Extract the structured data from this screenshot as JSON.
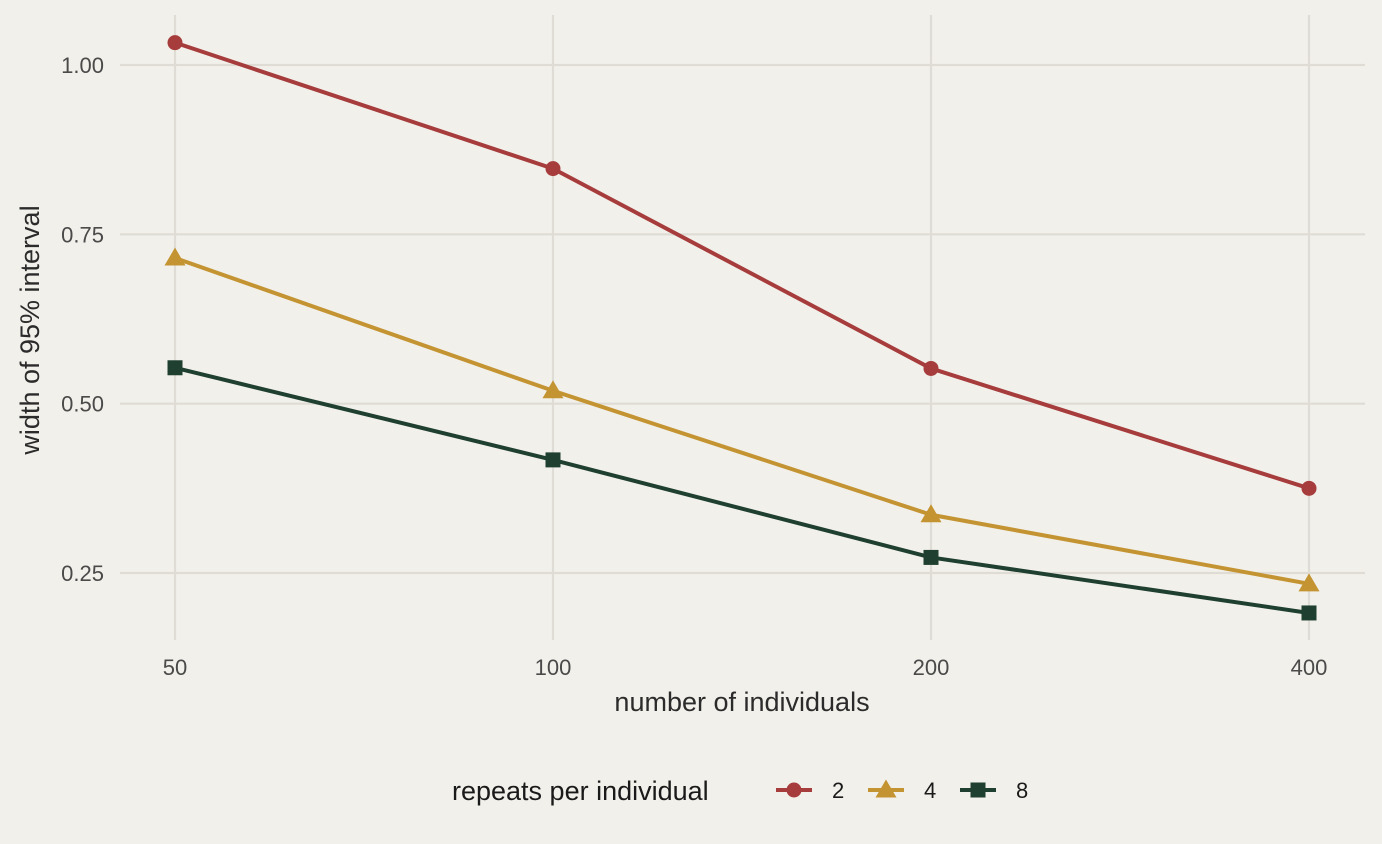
{
  "chart_data": {
    "type": "line",
    "xlabel": "number of individuals",
    "ylabel": "width of 95% interval",
    "x": [
      50,
      100,
      200,
      400
    ],
    "x_scale": "log2",
    "xlim": [
      50,
      400
    ],
    "ylim": [
      0.25,
      1.0
    ],
    "x_ticks": [
      "50",
      "100",
      "200",
      "400"
    ],
    "y_ticks": [
      "0.25",
      "0.50",
      "0.75",
      "1.00"
    ],
    "grid": true,
    "legend": {
      "title": "repeats per individual",
      "position": "bottom"
    },
    "series": [
      {
        "name": "2",
        "values": [
          1.033,
          0.847,
          0.552,
          0.375
        ],
        "color": "#a63c3c",
        "marker": "circle"
      },
      {
        "name": "4",
        "values": [
          0.715,
          0.519,
          0.336,
          0.234
        ],
        "color": "#c49433",
        "marker": "triangle"
      },
      {
        "name": "8",
        "values": [
          0.553,
          0.417,
          0.273,
          0.191
        ],
        "color": "#1f4030",
        "marker": "square"
      }
    ]
  },
  "colors": {
    "background": "#f2f0ea",
    "grid": "#dedcd4"
  }
}
